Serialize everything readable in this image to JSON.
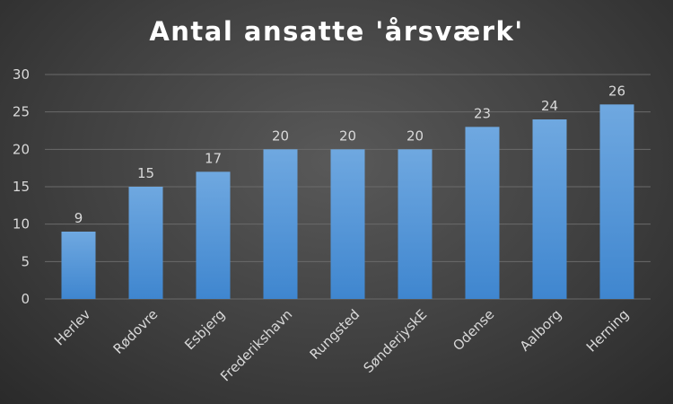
{
  "chart_data": {
    "type": "bar",
    "title": "Antal ansatte 'årsværk'",
    "categories": [
      "Herlev",
      "Rødovre",
      "Esbjerg",
      "Frederikshavn",
      "Rungsted",
      "SønderjyskE",
      "Odense",
      "Aalborg",
      "Herning"
    ],
    "values": [
      9,
      15,
      17,
      20,
      20,
      20,
      23,
      24,
      26
    ],
    "yticks": [
      0,
      5,
      10,
      15,
      20,
      25,
      30
    ],
    "ylim": [
      0,
      30
    ],
    "xlabel": "",
    "ylabel": "",
    "grid": true,
    "data_labels": true,
    "colors": {
      "bar_top": "#6fa8e0",
      "bar_bottom": "#3f86cf",
      "text": "#d9d9d9",
      "title": "#ffffff",
      "grid": "#6a6a6a"
    }
  }
}
